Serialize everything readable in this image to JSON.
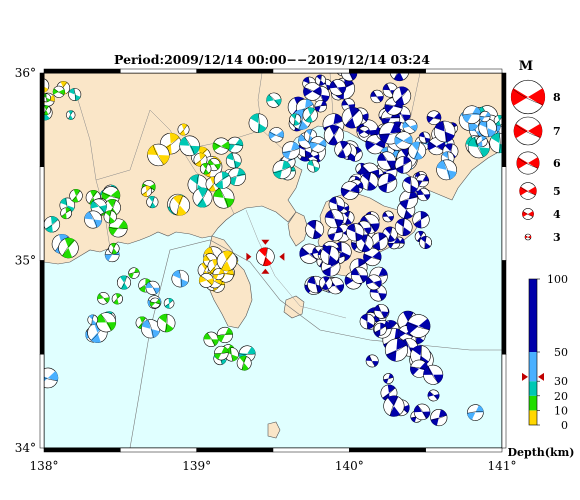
{
  "title": "Period:2009/12/14 00:00−−2019/12/14 03:24",
  "map": {
    "lon_ticks": [
      {
        "deg": "138",
        "label": "138°"
      },
      {
        "deg": "139",
        "label": "139°"
      },
      {
        "deg": "140",
        "label": "140°"
      },
      {
        "deg": "141",
        "label": "141°"
      }
    ],
    "lat_ticks": [
      {
        "deg": "36",
        "label": "36°"
      },
      {
        "deg": "35",
        "label": "35°"
      },
      {
        "deg": "34",
        "label": "34°"
      }
    ],
    "lon_range": [
      138,
      141
    ],
    "lat_range": [
      34,
      36
    ],
    "sea_color": "#e0ffff",
    "land_color": "#fae6c8",
    "main_event": {
      "lon": 139.45,
      "lat": 35.02,
      "color": "#ff0000",
      "marker": "red-triangles"
    }
  },
  "magnitude_legend": {
    "title": "M",
    "items": [
      {
        "label": "8",
        "value": 8
      },
      {
        "label": "7",
        "value": 7
      },
      {
        "label": "6",
        "value": 6
      },
      {
        "label": "5",
        "value": 5
      },
      {
        "label": "4",
        "value": 4
      },
      {
        "label": "3",
        "value": 3
      }
    ],
    "color": "#ff0000"
  },
  "depth_legend": {
    "title": "Depth(km)",
    "ticks": [
      {
        "label": "100",
        "value": 100
      },
      {
        "label": "50",
        "value": 50
      },
      {
        "label": "30",
        "value": 30
      },
      {
        "label": "20",
        "value": 20
      },
      {
        "label": "10",
        "value": 10
      },
      {
        "label": "0",
        "value": 0
      }
    ],
    "bands": [
      {
        "from": 0,
        "to": 10,
        "color": "#ffd700"
      },
      {
        "from": 10,
        "to": 20,
        "color": "#22dd00"
      },
      {
        "from": 20,
        "to": 30,
        "color": "#00c8b4"
      },
      {
        "from": 30,
        "to": 50,
        "color": "#4ab0ff"
      },
      {
        "from": 50,
        "to": 100,
        "color": "#0000aa"
      }
    ],
    "current_depth": 33
  }
}
